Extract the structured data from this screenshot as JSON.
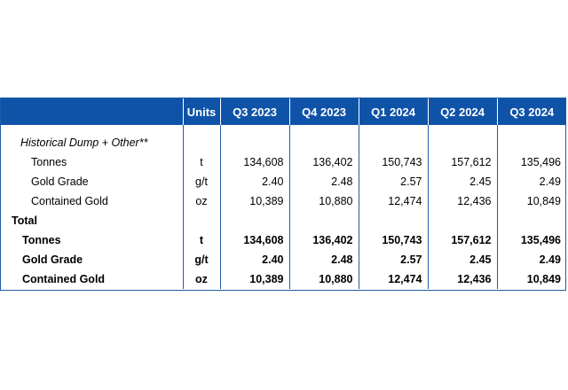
{
  "header": {
    "label": "",
    "units": "Units",
    "periods": [
      "Q3 2023",
      "Q4 2023",
      "Q1 2024",
      "Q2 2024",
      "Q3 2024"
    ]
  },
  "historical": {
    "title": "Historical Dump + Other**",
    "rows": [
      {
        "label": "Tonnes",
        "unit": "t",
        "values": [
          "134,608",
          "136,402",
          "150,743",
          "157,612",
          "135,496"
        ]
      },
      {
        "label": "Gold Grade",
        "unit": "g/t",
        "values": [
          "2.40",
          "2.48",
          "2.57",
          "2.45",
          "2.49"
        ]
      },
      {
        "label": "Contained Gold",
        "unit": "oz",
        "values": [
          "10,389",
          "10,880",
          "12,474",
          "12,436",
          "10,849"
        ]
      }
    ]
  },
  "total": {
    "title": "Total",
    "rows": [
      {
        "label": "Tonnes",
        "unit": "t",
        "values": [
          "134,608",
          "136,402",
          "150,743",
          "157,612",
          "135,496"
        ]
      },
      {
        "label": "Gold Grade",
        "unit": "g/t",
        "values": [
          "2.40",
          "2.48",
          "2.57",
          "2.45",
          "2.49"
        ]
      },
      {
        "label": "Contained Gold",
        "unit": "oz",
        "values": [
          "10,389",
          "10,880",
          "12,474",
          "12,436",
          "10,849"
        ]
      }
    ]
  }
}
